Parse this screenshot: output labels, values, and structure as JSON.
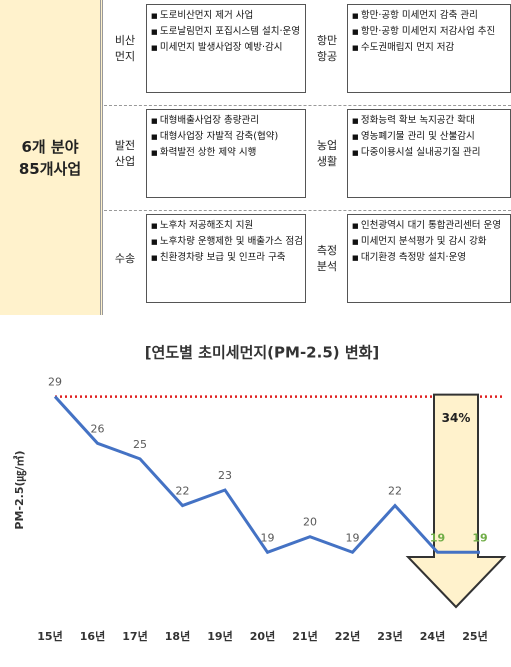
{
  "table": {
    "summary": [
      "6개 분야",
      "85개사업"
    ],
    "rows": [
      [
        {
          "label": [
            "비산",
            "먼지"
          ],
          "items": [
            "도로비산먼지 제거 사업",
            "도로날림먼지 포집시스템 설치·운영",
            "미세먼지 발생사업장 예방·감시"
          ]
        },
        {
          "label": [
            "항만",
            "항공"
          ],
          "items": [
            "항만·공항 미세먼지 감축 관리",
            "항만·공항 미세먼지 저감사업 추진",
            "수도권매립지 먼지 저감"
          ]
        }
      ],
      [
        {
          "label": [
            "발전",
            "산업"
          ],
          "items": [
            "대형배출사업장 총량관리",
            "대형사업장 자발적 감축(협약)",
            "화력발전 상한 제약 시행"
          ]
        },
        {
          "label": [
            "농업",
            "생활"
          ],
          "items": [
            "정화능력 확보 녹지공간 확대",
            "영농폐기물 관리 및 산불감시",
            "다중이용시설 실내공기질 관리"
          ]
        }
      ],
      [
        {
          "label": [
            "수송"
          ],
          "items": [
            "노후차 저공해조치 지원",
            "노후차량 운행제한 및 배출가스 점검",
            "친환경차량 보급 및 인프라 구축"
          ]
        },
        {
          "label": [
            "측정",
            "분석"
          ],
          "items": [
            "인천광역시 대기 통합관리센터 운영",
            "미세먼지 분석평가 및 감시 강화",
            "대기환경 측정망 설치·운영"
          ]
        }
      ]
    ]
  },
  "chart_data": {
    "type": "line",
    "title": "[연도별 초미세먼지(PM-2.5) 변화]",
    "y_label": "PM-2.5(㎍/㎥)",
    "categories": [
      "15년",
      "16년",
      "17년",
      "18년",
      "19년",
      "20년",
      "21년",
      "22년",
      "23년",
      "24년",
      "25년"
    ],
    "series": [
      {
        "name": "PM-2.5",
        "color": "#4472c4",
        "values": [
          29,
          26,
          25,
          22,
          23,
          19,
          20,
          19,
          22,
          19,
          19
        ],
        "label_colors": [
          "#595959",
          "#595959",
          "#595959",
          "#595959",
          "#595959",
          "#595959",
          "#595959",
          "#595959",
          "#595959",
          "#70ad47",
          "#70ad47"
        ]
      }
    ],
    "ylim": [
      16,
      30
    ],
    "reference_line": {
      "value": 29,
      "color": "#e02020"
    },
    "annotation": {
      "text": "34%",
      "color": "#fff2cc"
    }
  }
}
